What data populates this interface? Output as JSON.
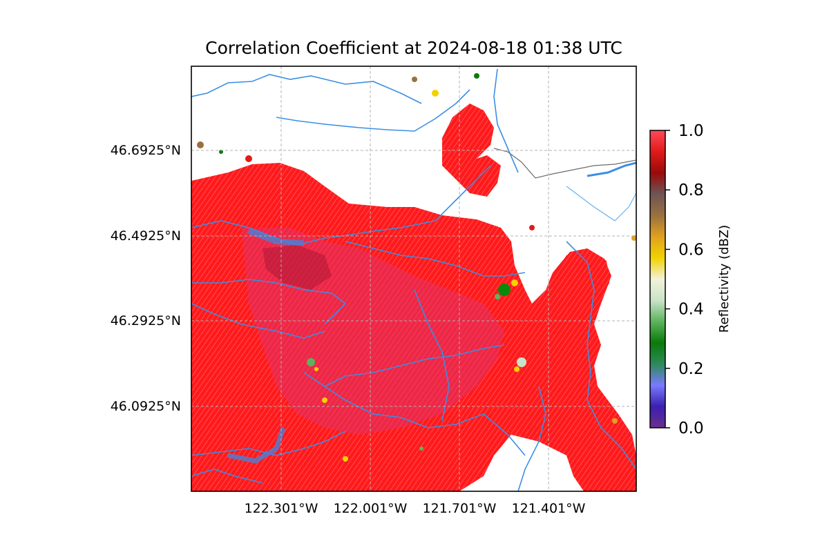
{
  "title": "Correlation Coefficient at 2024-08-18 01:38 UTC",
  "map": {
    "lat_labels": [
      "46.6925°N",
      "46.4925°N",
      "46.2925°N",
      "46.0925°N"
    ],
    "lon_labels": [
      "122.301°W",
      "122.001°W",
      "121.701°W",
      "121.401°W"
    ],
    "gridlines": true,
    "gridline_style": "dashed",
    "echo_color": "#ff1a1a",
    "water_color": "#3a8ee6",
    "border_color": "#6b6b6b"
  },
  "colorbar": {
    "label": "Reflectivity (dBZ)",
    "range": [
      0.0,
      1.0
    ],
    "ticks": [
      "0.0",
      "0.2",
      "0.4",
      "0.6",
      "0.8",
      "1.0"
    ],
    "colors": [
      "#6b2f8f",
      "#3a1fb0",
      "#7a7aff",
      "#2d8a5a",
      "#0a7a0a",
      "#5db35d",
      "#c9e3c9",
      "#f2f2d8",
      "#f2d200",
      "#e0a020",
      "#9a7040",
      "#6e5555",
      "#9a0a0a",
      "#e01a1a",
      "#ff4a5a"
    ]
  }
}
